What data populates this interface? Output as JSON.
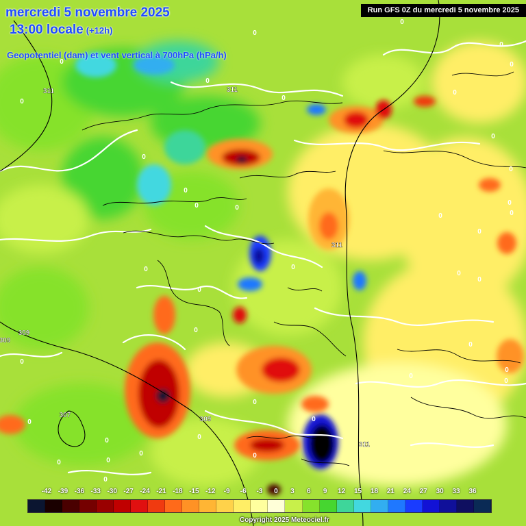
{
  "header": {
    "date_line": "mercredi 5 novembre 2025",
    "time_line": "13:00 locale",
    "lead_time": "(+12h)",
    "field_description": "Geopotentiel (dam) et vent vertical à 700hPa (hPa/h)",
    "run_info": "Run GFS 0Z du mercredi 5 novembre 2025"
  },
  "legend": {
    "ticks": [
      "-42",
      "-39",
      "-36",
      "-33",
      "-30",
      "-27",
      "-24",
      "-21",
      "-18",
      "-15",
      "-12",
      "-9",
      "-6",
      "-3",
      "0",
      "3",
      "6",
      "9",
      "12",
      "15",
      "18",
      "21",
      "24",
      "27",
      "30",
      "33",
      "36"
    ],
    "colors": [
      "#0b1530",
      "#1a0000",
      "#4a0000",
      "#750000",
      "#9a0000",
      "#c00000",
      "#e01010",
      "#f03a10",
      "#ff6a1a",
      "#ff9225",
      "#ffb534",
      "#ffd24a",
      "#ffee66",
      "#ffff9e",
      "#ffffd8",
      "#c8f04a",
      "#86e22c",
      "#46d630",
      "#3ed69a",
      "#42d8e0",
      "#32aef0",
      "#1f78ff",
      "#1a3cff",
      "#1212d6",
      "#10109a",
      "#0f0f60",
      "#0a2a55"
    ]
  },
  "contour_labels": [
    {
      "text": "311",
      "pos": "upper-left"
    },
    {
      "text": "311",
      "pos": "upper-center"
    },
    {
      "text": "311",
      "pos": "center-right"
    },
    {
      "text": "311",
      "pos": "lower-right"
    },
    {
      "text": "309",
      "pos": "left-edge"
    },
    {
      "text": "309",
      "pos": "left"
    },
    {
      "text": "309",
      "pos": "lower-center"
    },
    {
      "text": "307",
      "pos": "lower-left"
    }
  ],
  "zero_label": "0",
  "copyright": "Copyright 2025 Meteociel.fr"
}
